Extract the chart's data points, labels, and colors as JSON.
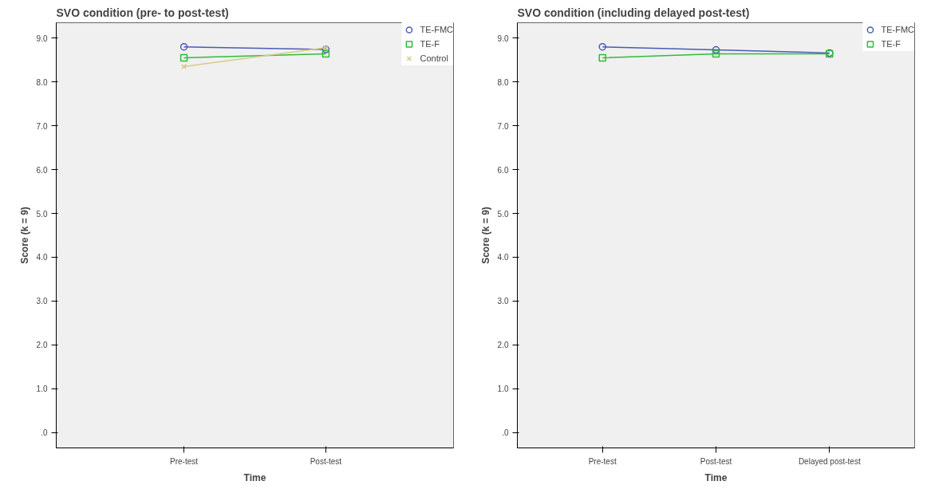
{
  "chart_data": [
    {
      "type": "line",
      "title": "SVO condition (pre- to post-test)",
      "xlabel": "Time",
      "ylabel": "Score (k = 9)",
      "categories": [
        "Pre-test",
        "Post-test"
      ],
      "ylim": [
        -0.35,
        9.35
      ],
      "yticks": [
        {
          "value": 0,
          "label": ".0"
        },
        {
          "value": 1,
          "label": "1.0"
        },
        {
          "value": 2,
          "label": "2.0"
        },
        {
          "value": 3,
          "label": "3.0"
        },
        {
          "value": 4,
          "label": "4.0"
        },
        {
          "value": 5,
          "label": "5.0"
        },
        {
          "value": 6,
          "label": "6.0"
        },
        {
          "value": 7,
          "label": "7.0"
        },
        {
          "value": 8,
          "label": "8.0"
        },
        {
          "value": 9,
          "label": "9.0"
        }
      ],
      "grid": false,
      "legend": "top right",
      "series": [
        {
          "name": "TE-FMC",
          "color": "#4a5ab4",
          "marker": "circle",
          "values": [
            8.8,
            8.74
          ]
        },
        {
          "name": "TE-F",
          "color": "#2ebd3a",
          "marker": "square",
          "values": [
            8.55,
            8.64
          ]
        },
        {
          "name": "Control",
          "color": "#d9c98c",
          "marker": "cross",
          "values": [
            8.35,
            8.78
          ]
        }
      ]
    },
    {
      "type": "line",
      "title": "SVO condition (including delayed post-test)",
      "xlabel": "Time",
      "ylabel": "Score (k = 9)",
      "categories": [
        "Pre-test",
        "Post-test",
        "Delayed post-test"
      ],
      "ylim": [
        -0.35,
        9.35
      ],
      "yticks": [
        {
          "value": 0,
          "label": ".0"
        },
        {
          "value": 1,
          "label": "1.0"
        },
        {
          "value": 2,
          "label": "2.0"
        },
        {
          "value": 3,
          "label": "3.0"
        },
        {
          "value": 4,
          "label": "4.0"
        },
        {
          "value": 5,
          "label": "5.0"
        },
        {
          "value": 6,
          "label": "6.0"
        },
        {
          "value": 7,
          "label": "7.0"
        },
        {
          "value": 8,
          "label": "8.0"
        },
        {
          "value": 9,
          "label": "9.0"
        }
      ],
      "grid": false,
      "legend": "top right",
      "series": [
        {
          "name": "TE-FMC",
          "color": "#4a5ab4",
          "marker": "circle",
          "values": [
            8.8,
            8.73,
            8.66
          ]
        },
        {
          "name": "TE-F",
          "color": "#2ebd3a",
          "marker": "square",
          "values": [
            8.55,
            8.64,
            8.64
          ]
        }
      ]
    }
  ]
}
